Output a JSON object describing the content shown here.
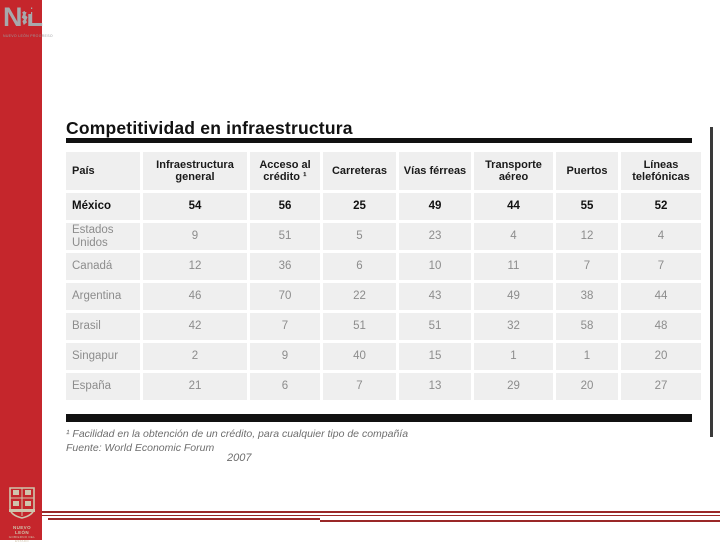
{
  "sidebar": {
    "accent_color": "#c5262c",
    "logo_top": {
      "letter_left": "N",
      "letter_right": "L",
      "slogan": "NUEVO LEÓN PROGRESO"
    },
    "logo_bottom": {
      "line1": "NUEVO LEÓN",
      "line2": "GOBIERNO DEL ESTADO"
    }
  },
  "slide": {
    "title": "Competitividad en infraestructura",
    "table": {
      "columns": [
        "País",
        "Infraestructura general",
        "Acceso al crédito ¹",
        "Carreteras",
        "Vías férreas",
        "Transporte aéreo",
        "Puertos",
        "Líneas telefónicas"
      ],
      "rows": [
        {
          "country": "México",
          "bold": true,
          "values": [
            "54",
            "56",
            "25",
            "49",
            "44",
            "55",
            "52"
          ]
        },
        {
          "country": "Estados Unidos",
          "bold": false,
          "values": [
            "9",
            "51",
            "5",
            "23",
            "4",
            "12",
            "4"
          ]
        },
        {
          "country": "Canadá",
          "bold": false,
          "values": [
            "12",
            "36",
            "6",
            "10",
            "11",
            "7",
            "7"
          ]
        },
        {
          "country": "Argentina",
          "bold": false,
          "values": [
            "46",
            "70",
            "22",
            "43",
            "49",
            "38",
            "44"
          ]
        },
        {
          "country": "Brasil",
          "bold": false,
          "values": [
            "42",
            "7",
            "51",
            "51",
            "32",
            "58",
            "48"
          ]
        },
        {
          "country": "Singapur",
          "bold": false,
          "values": [
            "2",
            "9",
            "40",
            "15",
            "1",
            "1",
            "20"
          ]
        },
        {
          "country": "España",
          "bold": false,
          "values": [
            "21",
            "6",
            "7",
            "13",
            "29",
            "20",
            "27"
          ]
        }
      ]
    },
    "footnotes": {
      "note1": "¹ Facilidad en la obtención de un crédito, para cualquier tipo de compañía",
      "source": "Fuente: World Economic Forum",
      "year": "2007"
    }
  }
}
